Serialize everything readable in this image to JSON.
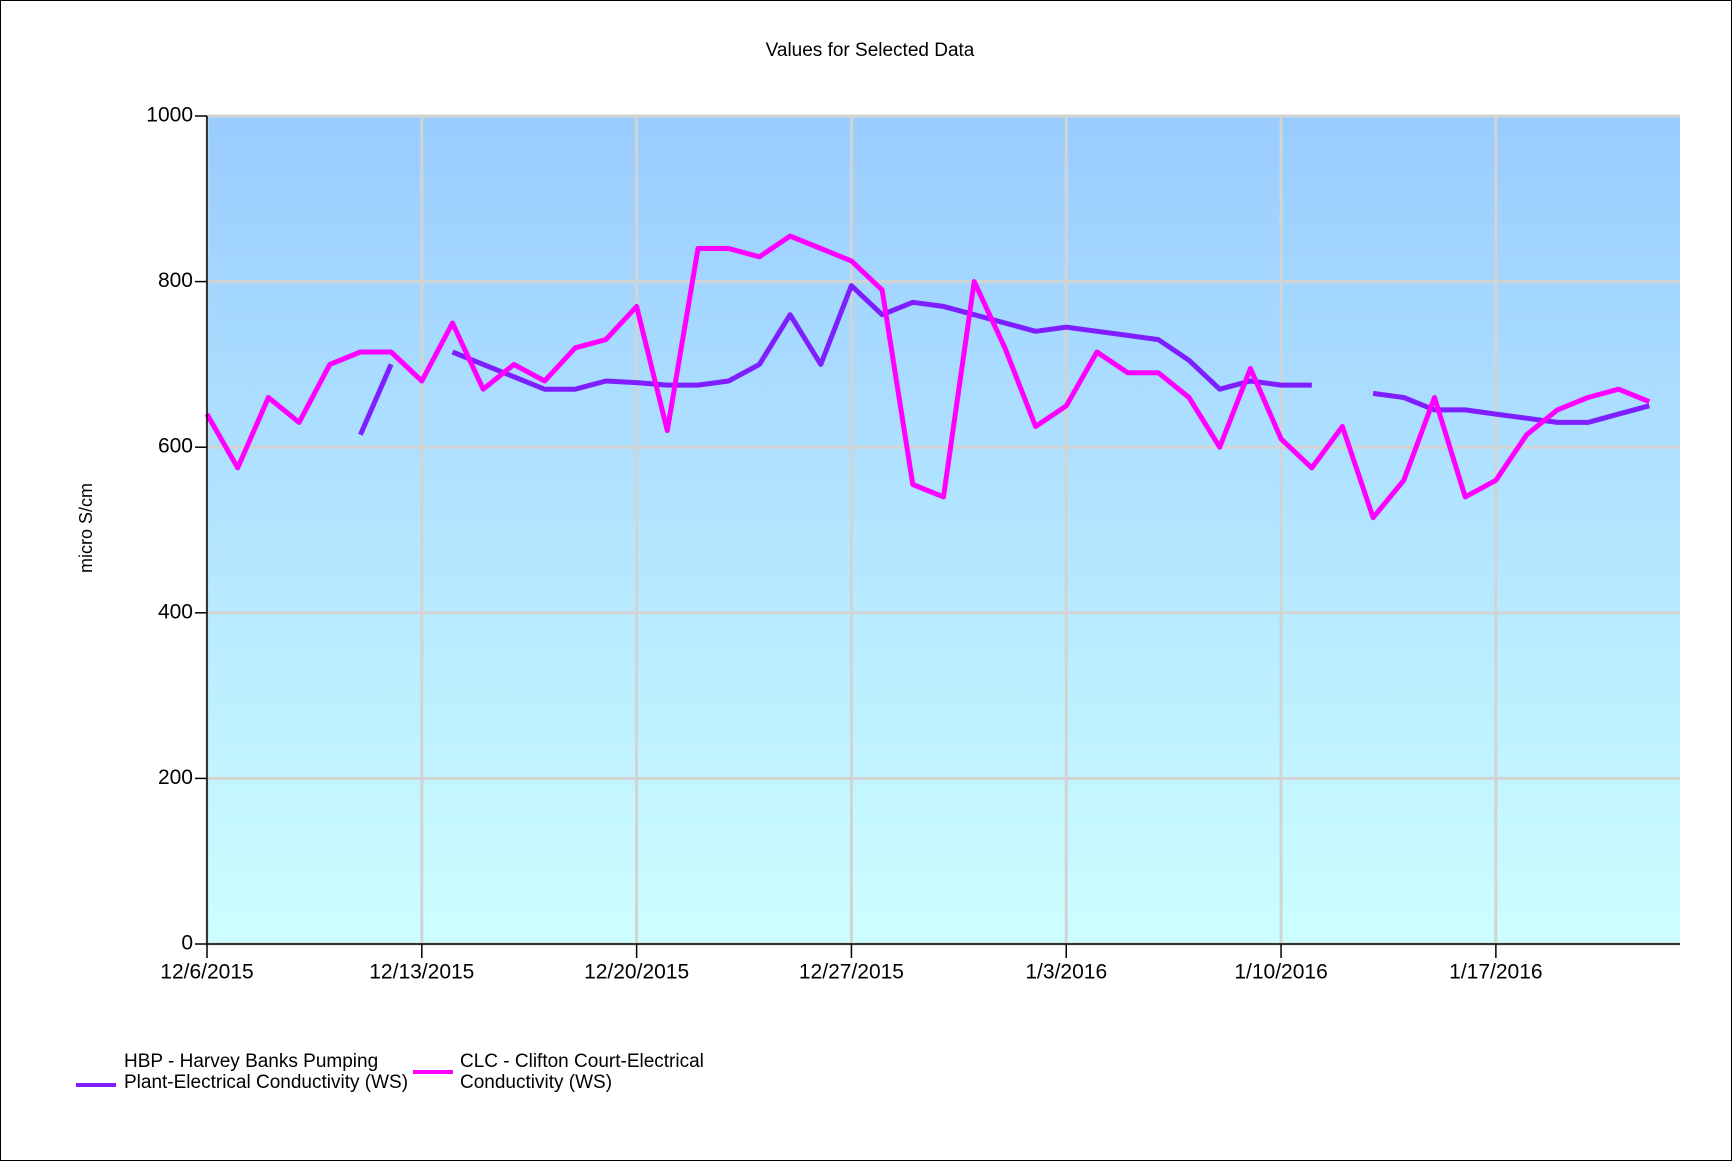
{
  "chart_data": {
    "type": "line",
    "title": "Values for Selected Data",
    "y_label": "micro S/cm",
    "x": [
      "2015-12-06",
      "2015-12-07",
      "2015-12-08",
      "2015-12-09",
      "2015-12-10",
      "2015-12-11",
      "2015-12-12",
      "2015-12-13",
      "2015-12-14",
      "2015-12-15",
      "2015-12-16",
      "2015-12-17",
      "2015-12-18",
      "2015-12-19",
      "2015-12-20",
      "2015-12-21",
      "2015-12-22",
      "2015-12-23",
      "2015-12-24",
      "2015-12-25",
      "2015-12-26",
      "2015-12-27",
      "2015-12-28",
      "2015-12-29",
      "2015-12-30",
      "2015-12-31",
      "2016-01-01",
      "2016-01-02",
      "2016-01-03",
      "2016-01-04",
      "2016-01-05",
      "2016-01-06",
      "2016-01-07",
      "2016-01-08",
      "2016-01-09",
      "2016-01-10",
      "2016-01-11",
      "2016-01-12",
      "2016-01-13",
      "2016-01-14",
      "2016-01-15",
      "2016-01-16",
      "2016-01-17",
      "2016-01-18",
      "2016-01-19",
      "2016-01-20",
      "2016-01-21",
      "2016-01-22"
    ],
    "series": [
      {
        "name": "HBP - Harvey Banks Pumping Plant-Electrical Conductivity (WS)",
        "color": "#7f1fff",
        "values": [
          null,
          null,
          null,
          null,
          null,
          615,
          700,
          null,
          715,
          700,
          685,
          670,
          670,
          680,
          678,
          675,
          675,
          680,
          700,
          760,
          700,
          795,
          760,
          775,
          770,
          760,
          750,
          740,
          745,
          740,
          735,
          730,
          705,
          670,
          680,
          675,
          675,
          null,
          665,
          660,
          645,
          645,
          640,
          635,
          630,
          630,
          640,
          650
        ]
      },
      {
        "name": "CLC - Clifton Court-Electrical Conductivity (WS)",
        "color": "#ff00ff",
        "values": [
          640,
          575,
          660,
          630,
          700,
          715,
          715,
          680,
          750,
          670,
          700,
          680,
          720,
          730,
          770,
          620,
          840,
          840,
          830,
          855,
          840,
          825,
          790,
          555,
          540,
          800,
          720,
          625,
          650,
          715,
          690,
          690,
          660,
          600,
          695,
          610,
          575,
          625,
          515,
          560,
          660,
          540,
          560,
          615,
          645,
          660,
          670,
          655
        ]
      }
    ],
    "xlim": [
      "2015-12-06",
      "2016-01-23"
    ],
    "xticks": [
      {
        "value": "2015-12-06",
        "label": "12/6/2015"
      },
      {
        "value": "2015-12-13",
        "label": "12/13/2015"
      },
      {
        "value": "2015-12-20",
        "label": "12/20/2015"
      },
      {
        "value": "2015-12-27",
        "label": "12/27/2015"
      },
      {
        "value": "2016-01-03",
        "label": "1/3/2016"
      },
      {
        "value": "2016-01-10",
        "label": "1/10/2016"
      },
      {
        "value": "2016-01-17",
        "label": "1/17/2016"
      }
    ],
    "ylim": [
      0,
      1000
    ],
    "yticks": [
      0,
      200,
      400,
      600,
      800,
      1000
    ],
    "grid": true
  }
}
